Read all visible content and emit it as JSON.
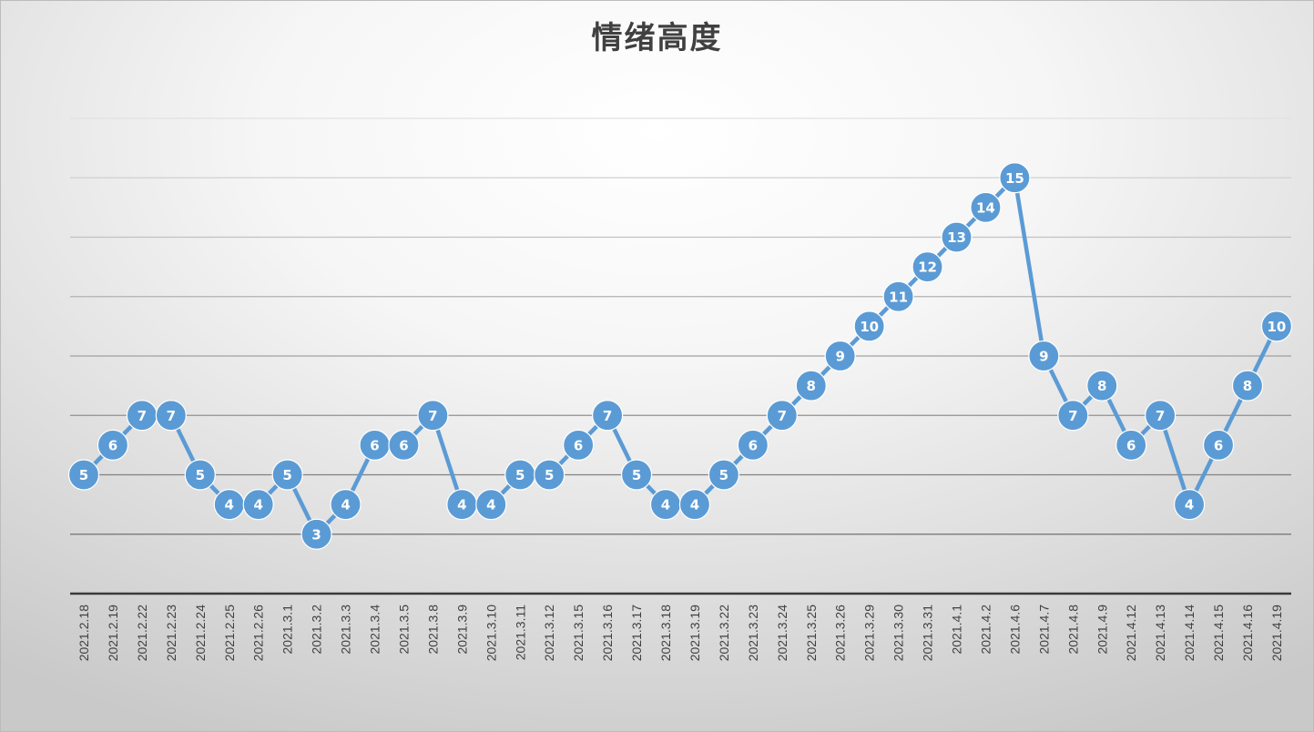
{
  "chart_data": {
    "type": "line",
    "title": "情绪高度",
    "xlabel": "",
    "ylabel": "",
    "ylim": [
      1,
      17
    ],
    "grid": true,
    "series_color": "#5b9bd5",
    "categories": [
      "2021.2.18",
      "2021.2.19",
      "2021.2.22",
      "2021.2.23",
      "2021.2.24",
      "2021.2.25",
      "2021.2.26",
      "2021.3.1",
      "2021.3.2",
      "2021.3.3",
      "2021.3.4",
      "2021.3.5",
      "2021.3.8",
      "2021.3.9",
      "2021.3.10",
      "2021.3.11",
      "2021.3.12",
      "2021.3.15",
      "2021.3.16",
      "2021.3.17",
      "2021.3.18",
      "2021.3.19",
      "2021.3.22",
      "2021.3.23",
      "2021.3.24",
      "2021.3.25",
      "2021.3.26",
      "2021.3.29",
      "2021.3.30",
      "2021.3.31",
      "2021.4.1",
      "2021.4.2",
      "2021.4.6",
      "2021.4.7",
      "2021.4.8",
      "2021.4.9",
      "2021.4.12",
      "2021.4.13",
      "2021.4.14",
      "2021.4.15",
      "2021.4.16",
      "2021.4.19"
    ],
    "values": [
      5,
      6,
      7,
      7,
      5,
      4,
      4,
      5,
      3,
      4,
      6,
      6,
      7,
      4,
      4,
      5,
      5,
      6,
      7,
      5,
      4,
      4,
      5,
      6,
      7,
      8,
      9,
      10,
      11,
      12,
      13,
      14,
      15,
      9,
      7,
      8,
      6,
      7,
      4,
      6,
      8,
      10
    ]
  }
}
